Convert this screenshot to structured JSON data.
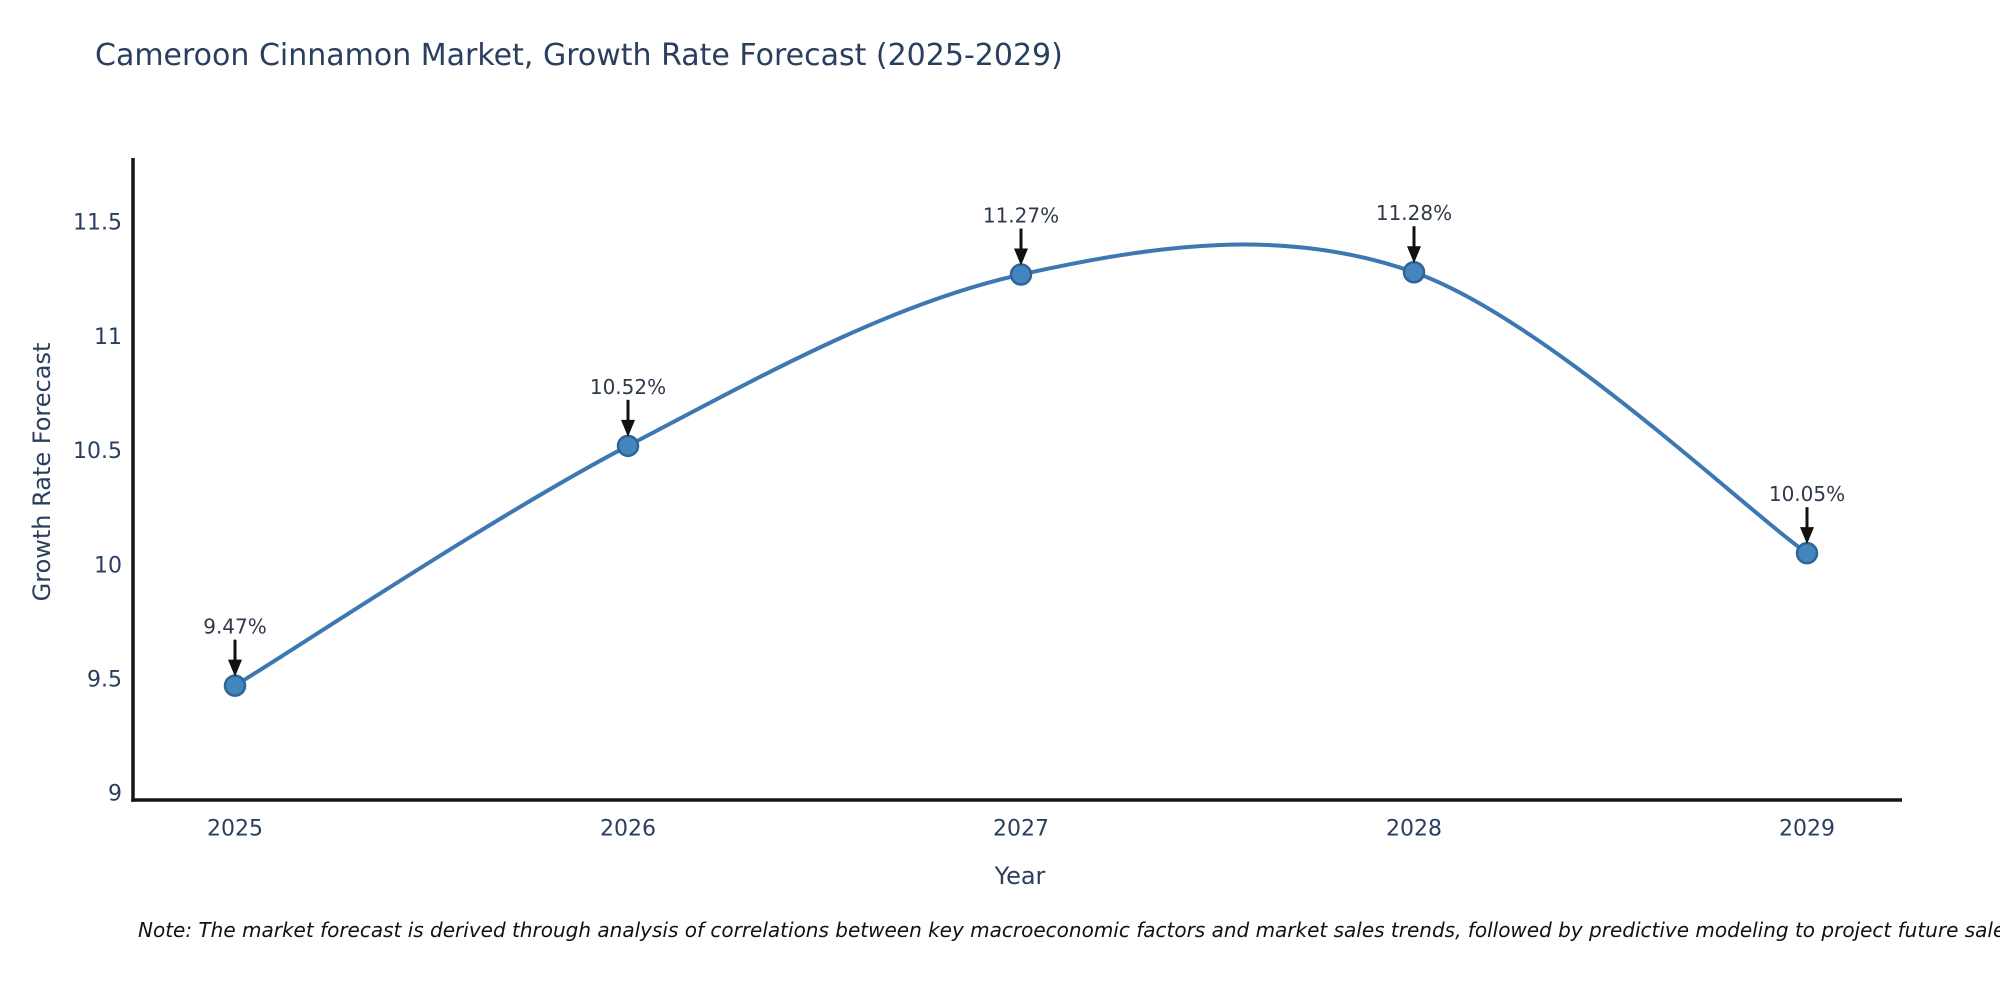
{
  "title": "Cameroon Cinnamon Market, Growth Rate Forecast (2025-2029)",
  "note": "Note: The market forecast is derived through analysis of correlations between key macroeconomic factors and market sales trends, followed by predictive modeling to project future sales",
  "chart_data": {
    "type": "line",
    "title": "Cameroon Cinnamon Market, Growth Rate Forecast (2025-2029)",
    "xlabel": "Year",
    "ylabel": "Growth Rate Forecast",
    "x": [
      2025,
      2026,
      2027,
      2028,
      2029
    ],
    "values": [
      9.47,
      10.52,
      11.27,
      11.28,
      10.05
    ],
    "point_labels": [
      "9.47%",
      "10.52%",
      "11.27%",
      "11.28%",
      "10.05%"
    ],
    "series_name": "Growth Rate Forecast",
    "x_tick_labels": [
      "2025",
      "2026",
      "2027",
      "2028",
      "2029"
    ],
    "y_tick_values": [
      9,
      9.5,
      10,
      10.5,
      11,
      11.5
    ],
    "y_tick_labels": [
      "9",
      "9.5",
      "10",
      "10.5",
      "11",
      "11.5"
    ],
    "xlim": [
      2024.74,
      2029.26
    ],
    "ylim": [
      8.97,
      11.81
    ],
    "line_shape": "spline",
    "grid": false,
    "legend_position": "none",
    "annotations_have_arrows": true,
    "colors": {
      "line": "#3d78b2",
      "marker_fill": "#4585bd",
      "marker_edge": "#2f6496",
      "axis_line": "#161616",
      "tick_text": "#2a3f5f",
      "title_text": "#2a3f5f",
      "annotation_text": "#30394a",
      "arrow": "#111111",
      "note_text": "#111111",
      "background": "#ffffff"
    }
  }
}
